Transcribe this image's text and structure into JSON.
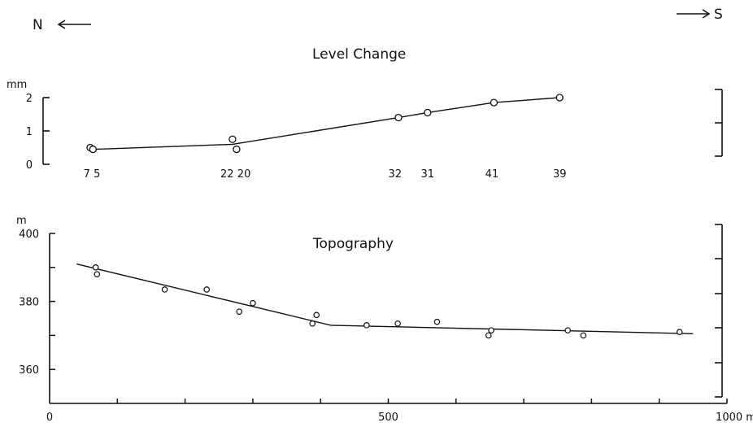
{
  "header": {
    "north_label": "N",
    "south_label": "S"
  },
  "chart_data": [
    {
      "type": "line",
      "title": "Level Change",
      "ylabel": "mm",
      "ylim": [
        0,
        2
      ],
      "yticks": [
        0,
        1,
        2
      ],
      "x_unit": "m",
      "points": [
        {
          "x": 60,
          "y": 0.5
        },
        {
          "x": 64,
          "y": 0.45
        },
        {
          "x": 270,
          "y": 0.75
        },
        {
          "x": 276,
          "y": 0.45
        },
        {
          "x": 515,
          "y": 1.4
        },
        {
          "x": 558,
          "y": 1.55
        },
        {
          "x": 656,
          "y": 1.85
        },
        {
          "x": 753,
          "y": 2.0
        }
      ],
      "line": [
        {
          "x": 64,
          "y": 0.45
        },
        {
          "x": 270,
          "y": 0.6
        },
        {
          "x": 515,
          "y": 1.4
        },
        {
          "x": 558,
          "y": 1.55
        },
        {
          "x": 656,
          "y": 1.85
        },
        {
          "x": 753,
          "y": 2.0
        }
      ],
      "station_labels": [
        {
          "label": "7",
          "x": 55
        },
        {
          "label": "5",
          "x": 70
        },
        {
          "label": "22",
          "x": 262
        },
        {
          "label": "20",
          "x": 287
        },
        {
          "label": "32",
          "x": 510
        },
        {
          "label": "31",
          "x": 558
        },
        {
          "label": "41",
          "x": 653
        },
        {
          "label": "39",
          "x": 753
        }
      ]
    },
    {
      "type": "scatter",
      "title": "Topography",
      "ylabel": "m",
      "ylim": [
        350,
        400
      ],
      "yticks": [
        360,
        380,
        400
      ],
      "xlim": [
        0,
        1000
      ],
      "xticks": [
        0,
        500,
        1000
      ],
      "xtick_labels": [
        "0",
        "500",
        "1000 m"
      ],
      "points": [
        {
          "x": 68,
          "y": 390
        },
        {
          "x": 70,
          "y": 388
        },
        {
          "x": 170,
          "y": 383.5
        },
        {
          "x": 232,
          "y": 383.5
        },
        {
          "x": 280,
          "y": 377
        },
        {
          "x": 300,
          "y": 379.5
        },
        {
          "x": 388,
          "y": 373.5
        },
        {
          "x": 394,
          "y": 376
        },
        {
          "x": 468,
          "y": 373
        },
        {
          "x": 514,
          "y": 373.5
        },
        {
          "x": 572,
          "y": 374
        },
        {
          "x": 648,
          "y": 370
        },
        {
          "x": 652,
          "y": 371.5
        },
        {
          "x": 765,
          "y": 371.5
        },
        {
          "x": 788,
          "y": 370
        },
        {
          "x": 930,
          "y": 371
        }
      ],
      "line": [
        {
          "x": 40,
          "y": 391
        },
        {
          "x": 415,
          "y": 373
        },
        {
          "x": 950,
          "y": 370.5
        }
      ]
    }
  ]
}
